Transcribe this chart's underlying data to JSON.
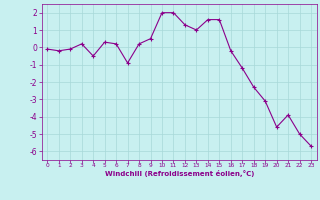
{
  "x": [
    0,
    1,
    2,
    3,
    4,
    5,
    6,
    7,
    8,
    9,
    10,
    11,
    12,
    13,
    14,
    15,
    16,
    17,
    18,
    19,
    20,
    21,
    22,
    23
  ],
  "y": [
    -0.1,
    -0.2,
    -0.1,
    0.2,
    -0.5,
    0.3,
    0.2,
    -0.9,
    0.2,
    0.5,
    2.0,
    2.0,
    1.3,
    1.0,
    1.6,
    1.6,
    -0.2,
    -1.2,
    -2.3,
    -3.1,
    -4.6,
    -3.9,
    -5.0,
    -5.7
  ],
  "line_color": "#8B008B",
  "marker_color": "#8B008B",
  "bg_color": "#c8f0f0",
  "grid_color": "#a8d8d8",
  "xlabel": "Windchill (Refroidissement éolien,°C)",
  "xlabel_color": "#8B008B",
  "tick_color": "#8B008B",
  "ylim": [
    -6.5,
    2.5
  ],
  "xlim": [
    -0.5,
    23.5
  ],
  "yticks": [
    -6,
    -5,
    -4,
    -3,
    -2,
    -1,
    0,
    1,
    2
  ],
  "xticks": [
    0,
    1,
    2,
    3,
    4,
    5,
    6,
    7,
    8,
    9,
    10,
    11,
    12,
    13,
    14,
    15,
    16,
    17,
    18,
    19,
    20,
    21,
    22,
    23
  ]
}
